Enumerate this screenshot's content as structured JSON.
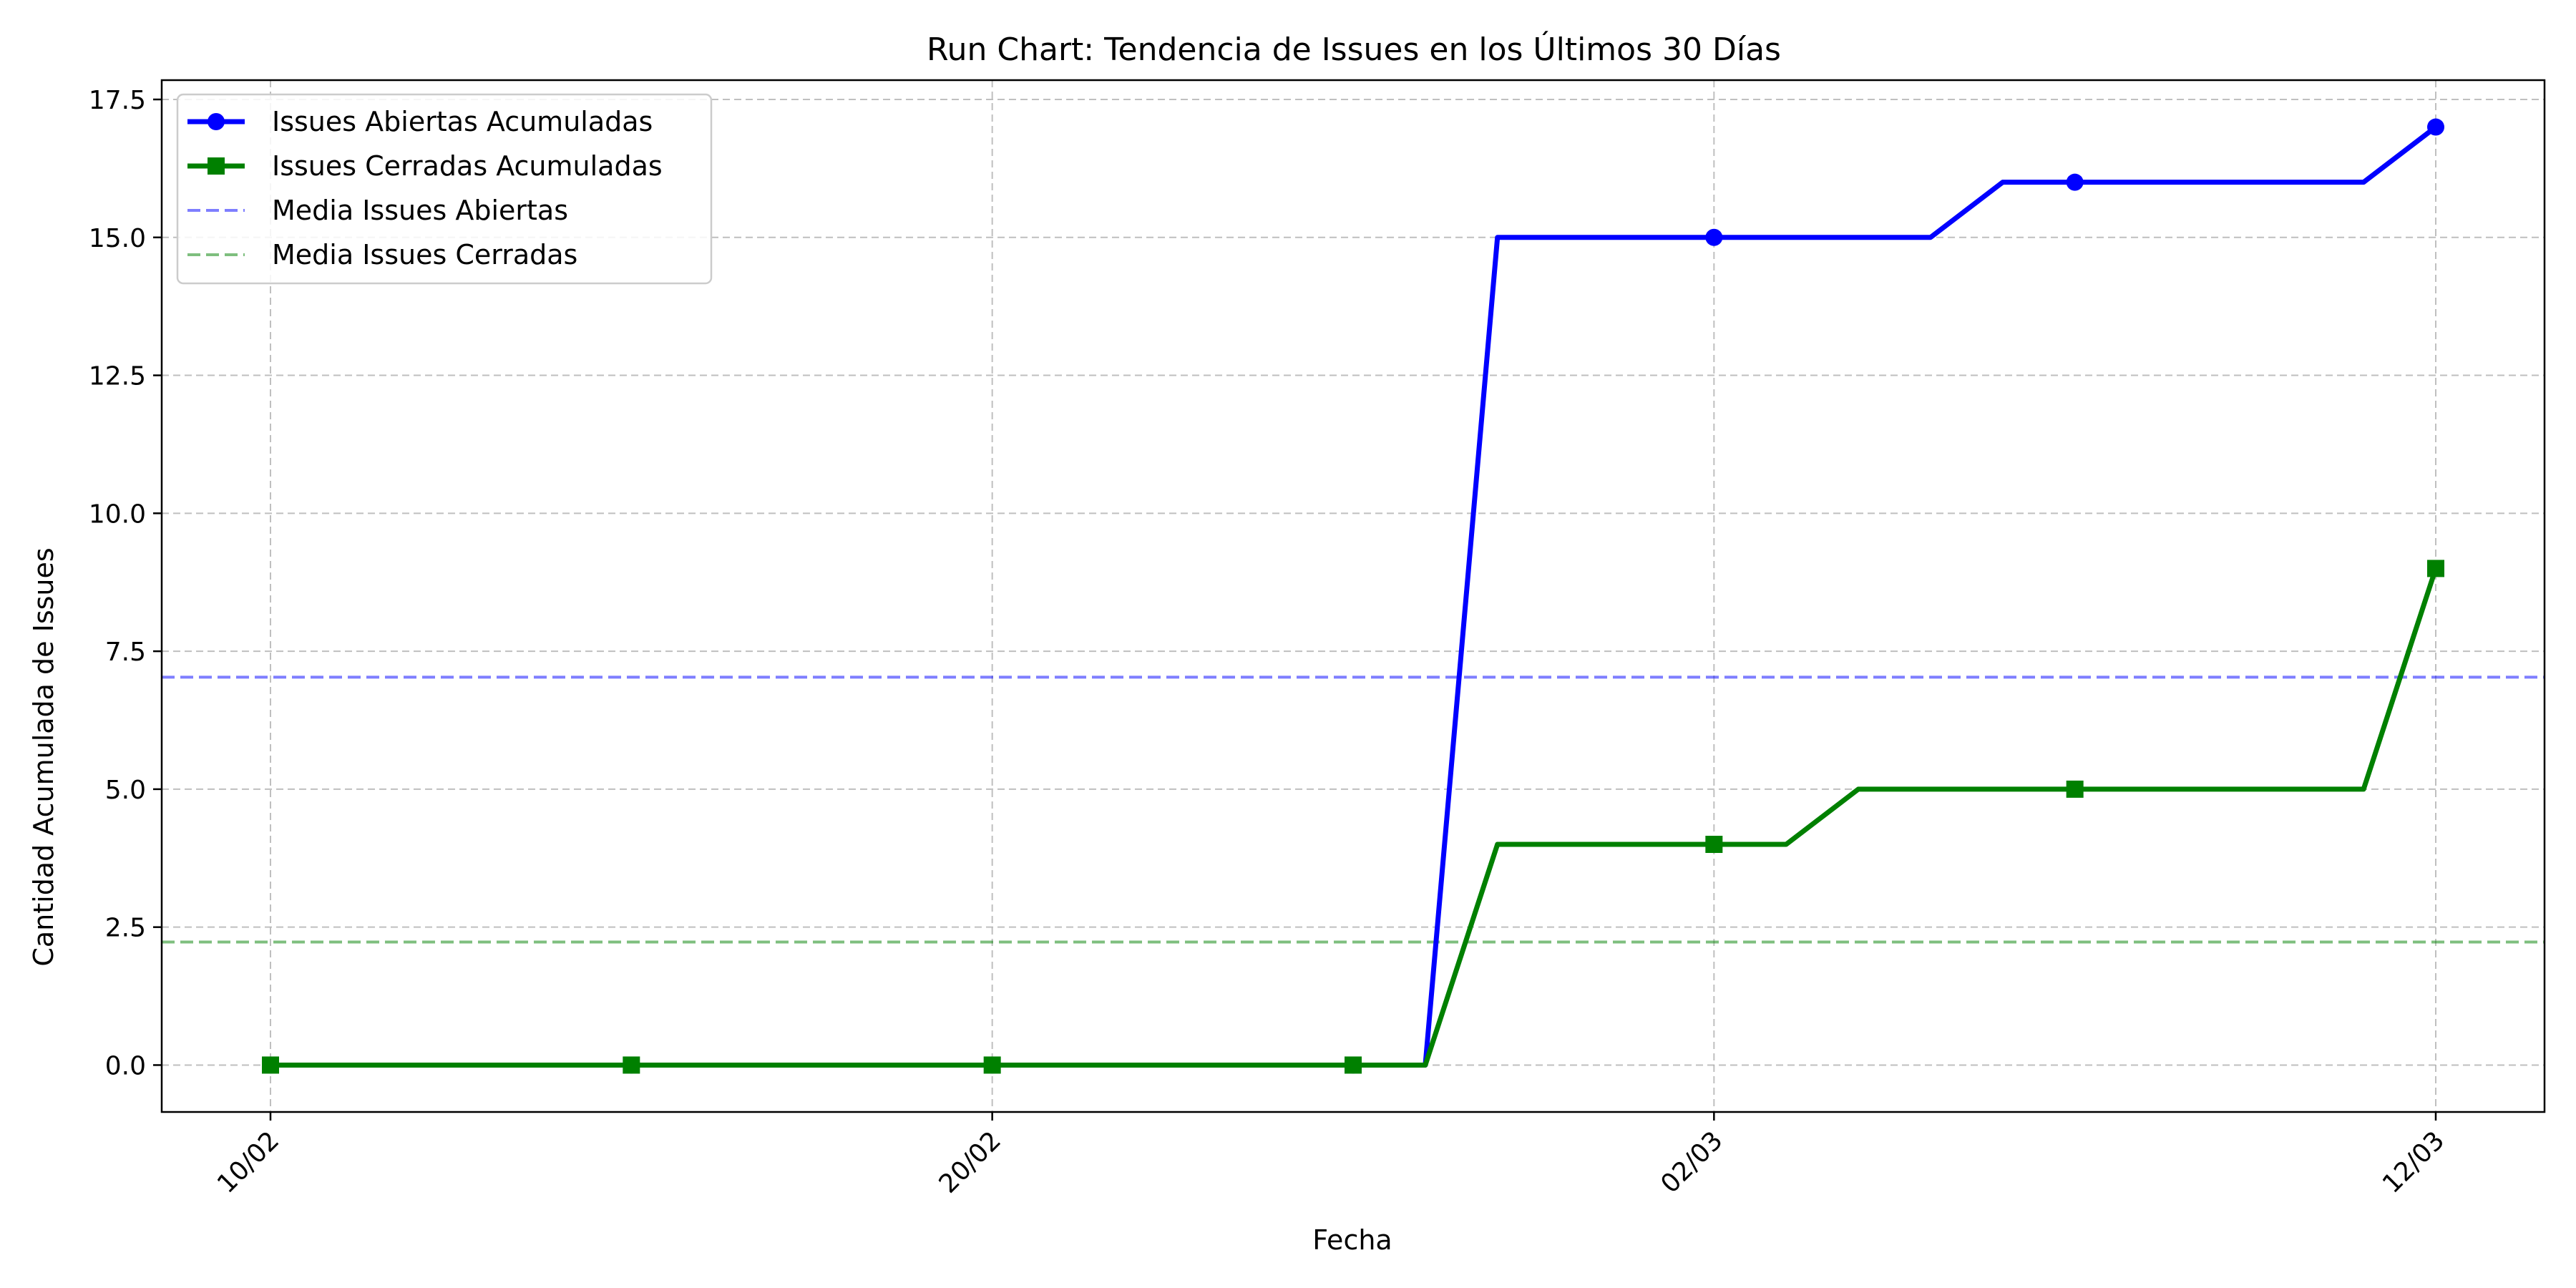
{
  "chart_data": {
    "type": "line",
    "title": "Run Chart: Tendencia de Issues en los Últimos 30 Días",
    "xlabel": "Fecha",
    "ylabel": "Cantidad Acumulada de Issues",
    "x": [
      "10/02",
      "11/02",
      "12/02",
      "13/02",
      "14/02",
      "15/02",
      "16/02",
      "17/02",
      "18/02",
      "19/02",
      "20/02",
      "21/02",
      "22/02",
      "23/02",
      "24/02",
      "25/02",
      "26/02",
      "27/02",
      "28/02",
      "01/03",
      "02/03",
      "03/03",
      "04/03",
      "05/03",
      "06/03",
      "07/03",
      "08/03",
      "09/03",
      "10/03",
      "11/03",
      "12/03"
    ],
    "x_ticks": [
      "10/02",
      "20/02",
      "02/03",
      "12/03"
    ],
    "ylim": [
      -0.85,
      17.85
    ],
    "y_ticks": [
      "0.0",
      "2.5",
      "5.0",
      "7.5",
      "10.0",
      "12.5",
      "15.0",
      "17.5"
    ],
    "y_tick_values": [
      0,
      2.5,
      5,
      7.5,
      10,
      12.5,
      15,
      17.5
    ],
    "grid": true,
    "legend_position": "top-left",
    "series": [
      {
        "name": "Issues Abiertas Acumuladas",
        "color": "#0000ff",
        "marker": "circle",
        "marker_every": 5,
        "values": [
          0,
          0,
          0,
          0,
          0,
          0,
          0,
          0,
          0,
          0,
          0,
          0,
          0,
          0,
          0,
          0,
          0,
          15,
          15,
          15,
          15,
          15,
          15,
          15,
          16,
          16,
          16,
          16,
          16,
          16,
          17
        ]
      },
      {
        "name": "Issues Cerradas Acumuladas",
        "color": "#008000",
        "marker": "square",
        "marker_every": 5,
        "values": [
          0,
          0,
          0,
          0,
          0,
          0,
          0,
          0,
          0,
          0,
          0,
          0,
          0,
          0,
          0,
          0,
          0,
          4,
          4,
          4,
          4,
          4,
          5,
          5,
          5,
          5,
          5,
          5,
          5,
          5,
          9
        ]
      }
    ],
    "reference_lines": [
      {
        "name": "Media Issues Abiertas",
        "value": 7.03,
        "color": "#0000ff",
        "style": "dashed"
      },
      {
        "name": "Media Issues Cerradas",
        "value": 2.23,
        "color": "#008000",
        "style": "dashed"
      }
    ]
  }
}
